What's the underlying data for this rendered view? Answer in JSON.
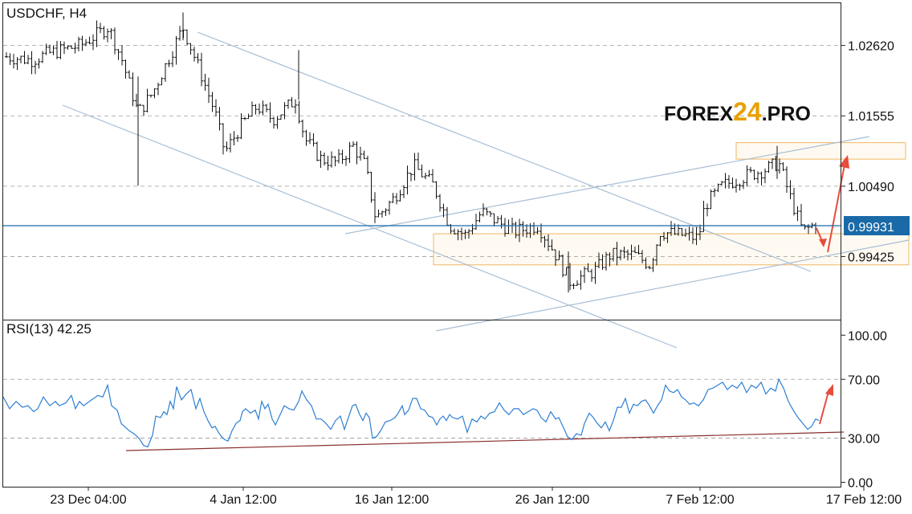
{
  "logo": {
    "part1": "FOREX",
    "part2": "24",
    "part3": ".PRO",
    "color_dark": "#111111",
    "color_accent": "#e8a000"
  },
  "chart_data": [
    {
      "type": "candlestick",
      "title": "USDCHF, H4",
      "ylim": [
        0.9847,
        1.0326
      ],
      "y_ticks": [
        "1.02620",
        "1.01555",
        "1.00490",
        "0.99425"
      ],
      "current_price": "0.99931",
      "current_price_color": "#1a6aa8",
      "x_tick_labels": [
        "23 Dec 04:00",
        "4 Jan 12:00",
        "16 Jan 12:00",
        "26 Jan 12:00",
        "7 Feb 12:00",
        "17 Feb 12:00"
      ],
      "grid": "dashed horizontal",
      "key_points": [
        {
          "label": "start",
          "close": 1.0245
        },
        {
          "label": "late Dec high",
          "high": 1.0308
        },
        {
          "label": "late Dec spike low",
          "low": 1.005
        },
        {
          "label": "early Jan high",
          "high": 1.0312
        },
        {
          "label": "8 Jan high",
          "high": 1.0255
        },
        {
          "label": "late Jan low",
          "low": 0.9888
        },
        {
          "label": "7 Feb rebound",
          "close": 0.9975
        },
        {
          "label": "mid Feb high",
          "high": 1.011
        },
        {
          "label": "last",
          "close": 0.9993
        }
      ],
      "zones": [
        {
          "name": "resistance",
          "from": 1.009,
          "to": 1.0115
        },
        {
          "name": "support",
          "from": 0.993,
          "to": 0.9977
        }
      ],
      "forecast_arrows": [
        "short move down",
        "move up toward resistance"
      ]
    },
    {
      "type": "line",
      "title": "RSI(13) 42.25",
      "ylim": [
        -3,
        110
      ],
      "y_ticks": [
        "100.00",
        "70.00",
        "30.00",
        "0.00"
      ],
      "series": [
        {
          "color": "#2d7fd3",
          "points": [
            [
              0,
              58
            ],
            [
              8,
              50
            ],
            [
              16,
              55
            ],
            [
              24,
              51
            ],
            [
              31,
              52
            ],
            [
              38,
              48
            ],
            [
              43,
              50
            ],
            [
              50,
              58
            ],
            [
              58,
              52
            ],
            [
              65,
              55
            ],
            [
              70,
              52
            ],
            [
              78,
              54
            ],
            [
              85,
              59
            ],
            [
              90,
              50
            ],
            [
              95,
              55
            ],
            [
              100,
              52
            ],
            [
              110,
              56
            ],
            [
              118,
              59
            ],
            [
              124,
              58
            ],
            [
              130,
              66
            ],
            [
              135,
              52
            ],
            [
              142,
              49
            ],
            [
              147,
              40
            ],
            [
              151,
              38
            ],
            [
              157,
              35
            ],
            [
              163,
              33
            ],
            [
              169,
              30
            ],
            [
              175,
              25
            ],
            [
              180,
              24
            ],
            [
              186,
              32
            ],
            [
              190,
              45
            ],
            [
              196,
              44
            ],
            [
              200,
              48
            ],
            [
              204,
              46
            ],
            [
              208,
              55
            ],
            [
              212,
              50
            ],
            [
              216,
              65
            ],
            [
              222,
              56
            ],
            [
              228,
              60
            ],
            [
              234,
              63
            ],
            [
              240,
              50
            ],
            [
              245,
              57
            ],
            [
              250,
              48
            ],
            [
              255,
              42
            ],
            [
              260,
              37
            ],
            [
              264,
              38
            ],
            [
              268,
              34
            ],
            [
              272,
              31
            ],
            [
              276,
              29
            ],
            [
              280,
              28
            ],
            [
              285,
              35
            ],
            [
              290,
              40
            ],
            [
              295,
              42
            ],
            [
              298,
              48
            ],
            [
              302,
              50
            ],
            [
              308,
              47
            ],
            [
              314,
              49
            ],
            [
              318,
              43
            ],
            [
              322,
              55
            ],
            [
              326,
              50
            ],
            [
              330,
              53
            ],
            [
              335,
              43
            ],
            [
              339,
              39
            ],
            [
              345,
              46
            ],
            [
              350,
              52
            ],
            [
              356,
              50
            ],
            [
              362,
              49
            ],
            [
              368,
              55
            ],
            [
              372,
              62
            ],
            [
              378,
              56
            ],
            [
              384,
              52
            ],
            [
              390,
              43
            ],
            [
              396,
              43
            ],
            [
              402,
              40
            ],
            [
              408,
              36
            ],
            [
              414,
              42
            ],
            [
              420,
              45
            ],
            [
              425,
              36
            ],
            [
              430,
              44
            ],
            [
              435,
              52
            ],
            [
              439,
              53
            ],
            [
              444,
              46
            ],
            [
              448,
              42
            ],
            [
              452,
              47
            ],
            [
              456,
              44
            ],
            [
              460,
              30
            ],
            [
              465,
              31
            ],
            [
              470,
              35
            ],
            [
              476,
              41
            ],
            [
              482,
              42
            ],
            [
              488,
              44
            ],
            [
              492,
              47
            ],
            [
              497,
              52
            ],
            [
              500,
              46
            ],
            [
              505,
              49
            ],
            [
              510,
              57
            ],
            [
              515,
              57
            ],
            [
              520,
              50
            ],
            [
              525,
              49
            ],
            [
              530,
              45
            ],
            [
              535,
              44
            ],
            [
              540,
              39
            ],
            [
              544,
              43
            ],
            [
              548,
              45
            ],
            [
              552,
              42
            ],
            [
              556,
              46
            ],
            [
              560,
              44
            ],
            [
              566,
              43
            ],
            [
              572,
              45
            ],
            [
              578,
              34
            ],
            [
              584,
              43
            ],
            [
              590,
              41
            ],
            [
              595,
              45
            ],
            [
              600,
              43
            ],
            [
              606,
              47
            ],
            [
              612,
              48
            ],
            [
              618,
              54
            ],
            [
              624,
              49
            ],
            [
              630,
              46
            ],
            [
              636,
              50
            ],
            [
              642,
              50
            ],
            [
              648,
              46
            ],
            [
              654,
              48
            ],
            [
              660,
              50
            ],
            [
              665,
              49
            ],
            [
              670,
              44
            ],
            [
              676,
              41
            ],
            [
              682,
              48
            ],
            [
              688,
              43
            ],
            [
              692,
              44
            ],
            [
              698,
              37
            ],
            [
              703,
              31
            ],
            [
              708,
              29
            ],
            [
              714,
              33
            ],
            [
              720,
              32
            ],
            [
              724,
              40
            ],
            [
              730,
              47
            ],
            [
              735,
              44
            ],
            [
              740,
              40
            ],
            [
              745,
              37
            ],
            [
              750,
              41
            ],
            [
              755,
              35
            ],
            [
              760,
              42
            ],
            [
              765,
              51
            ],
            [
              770,
              51
            ],
            [
              775,
              57
            ],
            [
              780,
              47
            ],
            [
              785,
              53
            ],
            [
              790,
              52
            ],
            [
              795,
              55
            ],
            [
              800,
              56
            ],
            [
              805,
              52
            ],
            [
              810,
              47
            ],
            [
              815,
              52
            ],
            [
              820,
              56
            ],
            [
              825,
              66
            ],
            [
              830,
              62
            ],
            [
              835,
              61
            ],
            [
              840,
              63
            ],
            [
              845,
              58
            ],
            [
              850,
              56
            ],
            [
              855,
              53
            ],
            [
              860,
              54
            ],
            [
              866,
              52
            ],
            [
              872,
              56
            ],
            [
              878,
              63
            ],
            [
              884,
              64
            ],
            [
              890,
              66
            ],
            [
              896,
              68
            ],
            [
              902,
              63
            ],
            [
              908,
              66
            ],
            [
              914,
              64
            ],
            [
              920,
              68
            ],
            [
              926,
              61
            ],
            [
              932,
              66
            ],
            [
              938,
              64
            ],
            [
              944,
              68
            ],
            [
              950,
              60
            ],
            [
              956,
              64
            ],
            [
              962,
              62
            ],
            [
              966,
              70
            ],
            [
              972,
              64
            ],
            [
              978,
              55
            ],
            [
              984,
              49
            ],
            [
              990,
              44
            ],
            [
              996,
              40
            ],
            [
              1002,
              36
            ],
            [
              1007,
              38
            ],
            [
              1012,
              43
            ],
            [
              1016,
              42
            ]
          ]
        }
      ],
      "trend_line_color": "#8b2e2e"
    }
  ]
}
